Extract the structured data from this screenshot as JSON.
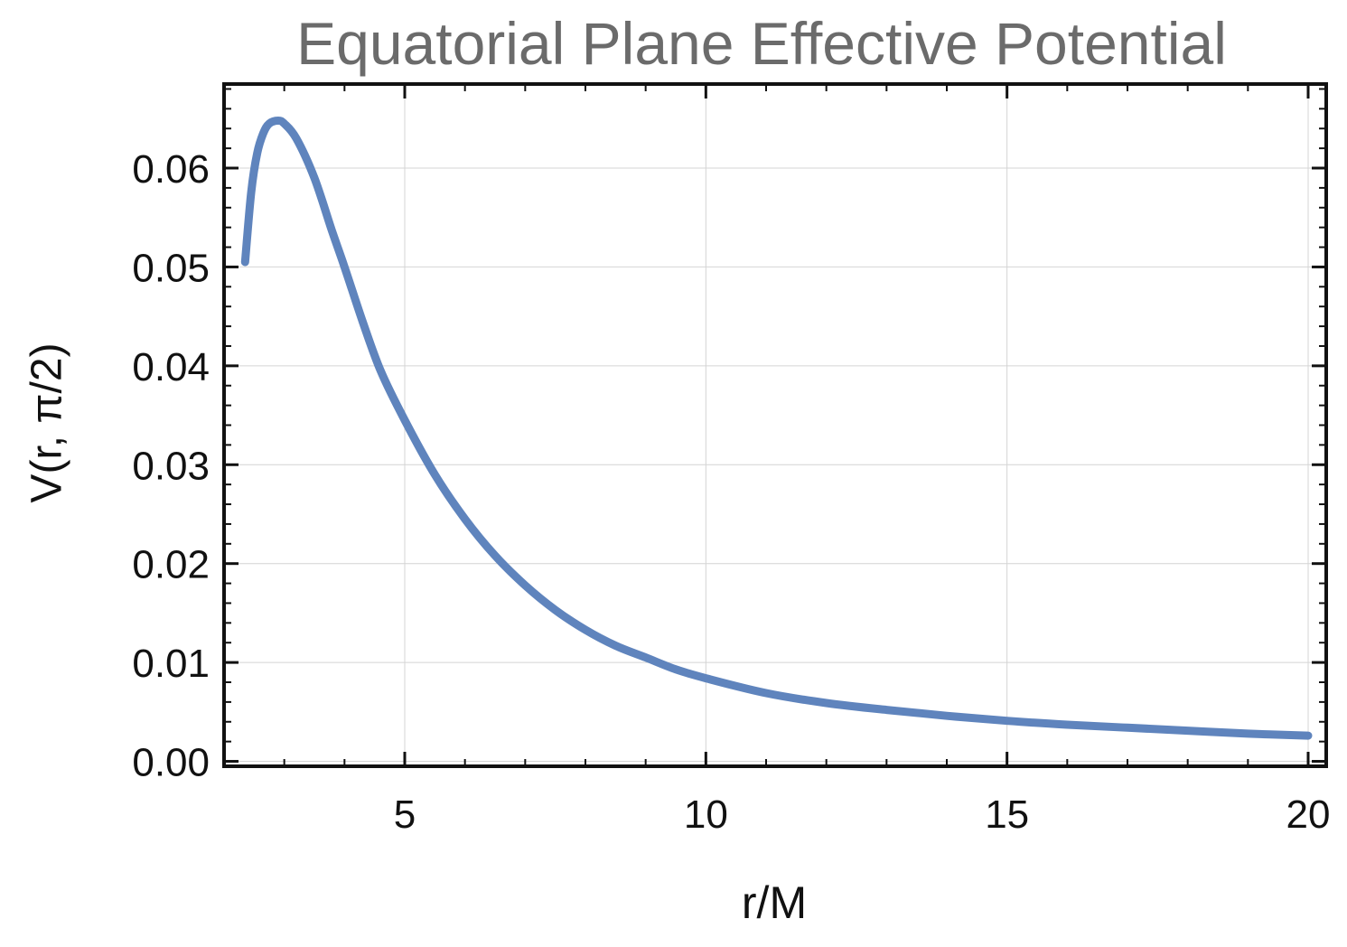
{
  "chart_data": {
    "type": "line",
    "title": "Equatorial Plane Effective Potential",
    "xlabel": "r/M",
    "ylabel": "V(r, π/2)",
    "xlim": [
      2.0,
      20.3
    ],
    "ylim": [
      -0.0005,
      0.0685
    ],
    "xticks": [
      5,
      10,
      15,
      20
    ],
    "yticks": [
      0.0,
      0.01,
      0.02,
      0.03,
      0.04,
      0.05,
      0.06
    ],
    "ytick_labels": [
      "0.00",
      "0.01",
      "0.02",
      "0.03",
      "0.04",
      "0.05",
      "0.06"
    ],
    "grid": true,
    "line_color": "#5f84bd",
    "series": [
      {
        "x": [
          2.35,
          2.45,
          2.55,
          2.65,
          2.75,
          2.9,
          3.0,
          3.2,
          3.5,
          3.8,
          4.0,
          4.3,
          4.6,
          5.0,
          5.5,
          6.0,
          6.5,
          7.0,
          7.5,
          8.0,
          8.5,
          9.0,
          9.5,
          10.0,
          11.0,
          12.0,
          13.0,
          14.0,
          15.0,
          16.0,
          17.0,
          18.0,
          19.0,
          20.0
        ],
        "y": [
          0.0505,
          0.0575,
          0.0615,
          0.0635,
          0.0645,
          0.0648,
          0.0645,
          0.063,
          0.059,
          0.0535,
          0.05,
          0.0445,
          0.0395,
          0.0345,
          0.029,
          0.0245,
          0.0208,
          0.0178,
          0.0153,
          0.0133,
          0.0117,
          0.0105,
          0.0093,
          0.0084,
          0.0069,
          0.0059,
          0.0052,
          0.0046,
          0.0041,
          0.0037,
          0.0034,
          0.0031,
          0.0028,
          0.0026
        ]
      }
    ]
  }
}
